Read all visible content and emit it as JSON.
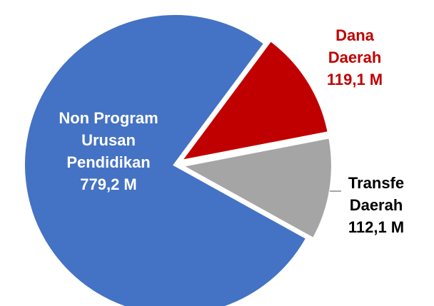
{
  "chart_data": {
    "type": "pie",
    "categories": [
      [
        "Non Program",
        "Urusan",
        "Pendidikan"
      ],
      [
        "Dana",
        "Daerah"
      ],
      [
        "Transfe",
        "Daerah"
      ]
    ],
    "values": [
      779.2,
      119.1,
      112.1
    ],
    "value_labels": [
      "779,2 M",
      "119,1 M",
      "112,1 M"
    ],
    "colors": [
      "#4472C4",
      "#C00000",
      "#A5A5A5"
    ],
    "label_colors": [
      "#FFFFFF",
      "#C00000",
      "#000000"
    ]
  }
}
